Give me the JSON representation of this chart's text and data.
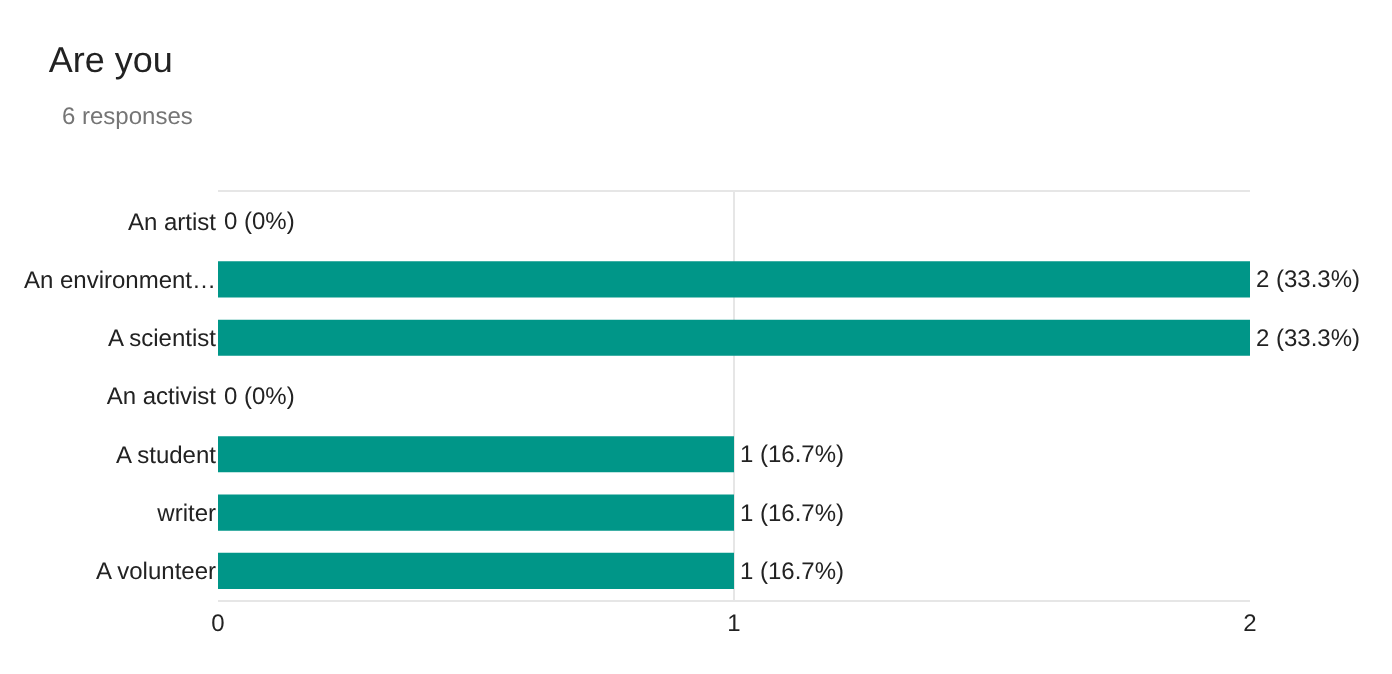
{
  "chart_data": {
    "type": "bar",
    "orientation": "horizontal",
    "title": "Are you",
    "subtitle": "6 responses",
    "categories": [
      "An artist",
      "An environment…",
      "A scientist",
      "An activist",
      "A student",
      "writer",
      "A volunteer"
    ],
    "values": [
      0,
      2,
      2,
      0,
      1,
      1,
      1
    ],
    "value_labels": [
      "0 (0%)",
      "2 (33.3%)",
      "2 (33.3%)",
      "0 (0%)",
      "1 (16.7%)",
      "1 (16.7%)",
      "1 (16.7%)"
    ],
    "color": "#009688",
    "xlim": [
      0,
      2
    ],
    "xticks": [
      0,
      1,
      2
    ],
    "grid": "x",
    "legend": false
  }
}
